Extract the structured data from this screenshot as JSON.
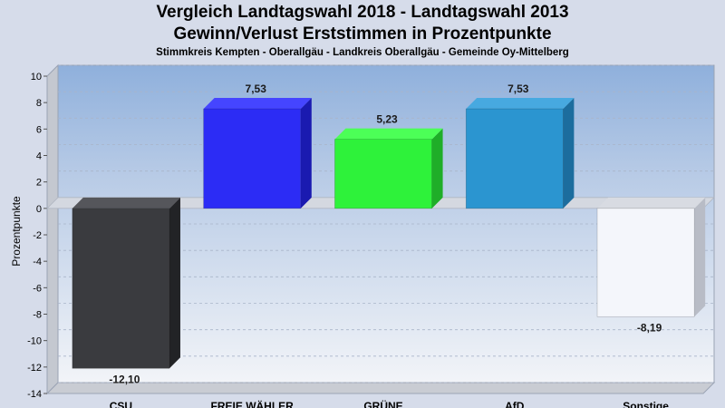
{
  "title_line1": "Vergleich Landtagswahl 2018 - Landtagswahl 2013",
  "title_line2": "Gewinn/Verlust Erststimmen in Prozentpunkte",
  "subtitle": "Stimmkreis Kempten - Oberallgäu - Landkreis Oberallgäu - Gemeinde Oy-Mittelberg",
  "chart_data": {
    "type": "bar",
    "title": "Vergleich Landtagswahl 2018 - Landtagswahl 2013 / Gewinn/Verlust Erststimmen in Prozentpunkte",
    "subtitle": "Stimmkreis Kempten - Oberallgäu - Landkreis Oberallgäu - Gemeinde Oy-Mittelberg",
    "xlabel": "",
    "ylabel": "Prozentpunkte",
    "ylim": [
      -14,
      10
    ],
    "yticks": [
      10,
      8,
      6,
      4,
      2,
      0,
      -2,
      -4,
      -6,
      -8,
      -10,
      -12,
      -14
    ],
    "grid": true,
    "categories": [
      "CSU",
      "FREIE WÄHLER",
      "GRÜNE",
      "AfD",
      "Sonstige"
    ],
    "values": [
      -12.1,
      7.53,
      5.23,
      7.53,
      -8.19
    ],
    "value_labels": [
      "-12,10",
      "7,53",
      "5,23",
      "7,53",
      "-8,19"
    ],
    "colors": [
      "#3a3b3f",
      "#2c2cf5",
      "#2ef23a",
      "#2b95d0",
      "#f4f6fb"
    ],
    "side_colors": [
      "#222326",
      "#1a1ab0",
      "#1fae28",
      "#1c6d9e",
      "#b8bcc6"
    ],
    "top_colors": [
      "#55565b",
      "#4545ff",
      "#4cff57",
      "#47a9e0",
      "#d8dbe2"
    ]
  }
}
